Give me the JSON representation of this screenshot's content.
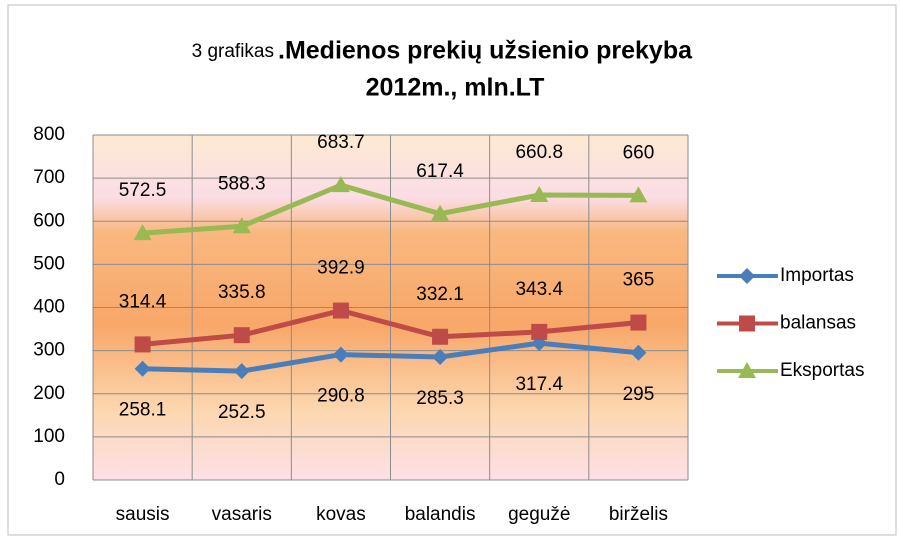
{
  "chart_data": {
    "type": "line",
    "title": [
      "3 grafikas",
      ".Medienos prekių užsienio prekyba",
      "2012m., mln.LT"
    ],
    "categories": [
      "sausis",
      "vasaris",
      "kovas",
      "balandis",
      "gegužė",
      "birželis"
    ],
    "series": [
      {
        "name": "Importas",
        "color": "#4a7ebb",
        "marker": "diamond",
        "label_position": "below",
        "values": [
          258.1,
          252.5,
          290.8,
          285.3,
          317.4,
          295
        ]
      },
      {
        "name": "balansas",
        "color": "#be4b48",
        "marker": "square",
        "label_position": "above",
        "values": [
          314.4,
          335.8,
          392.9,
          332.1,
          343.4,
          365
        ]
      },
      {
        "name": "Eksportas",
        "color": "#98b954",
        "marker": "triangle",
        "label_position": "above",
        "values": [
          572.5,
          588.3,
          683.7,
          617.4,
          660.8,
          660
        ]
      }
    ],
    "ylim": [
      0,
      800
    ],
    "yticks": [
      0,
      100,
      200,
      300,
      400,
      500,
      600,
      700,
      800
    ],
    "grid": true,
    "legend": "right"
  }
}
